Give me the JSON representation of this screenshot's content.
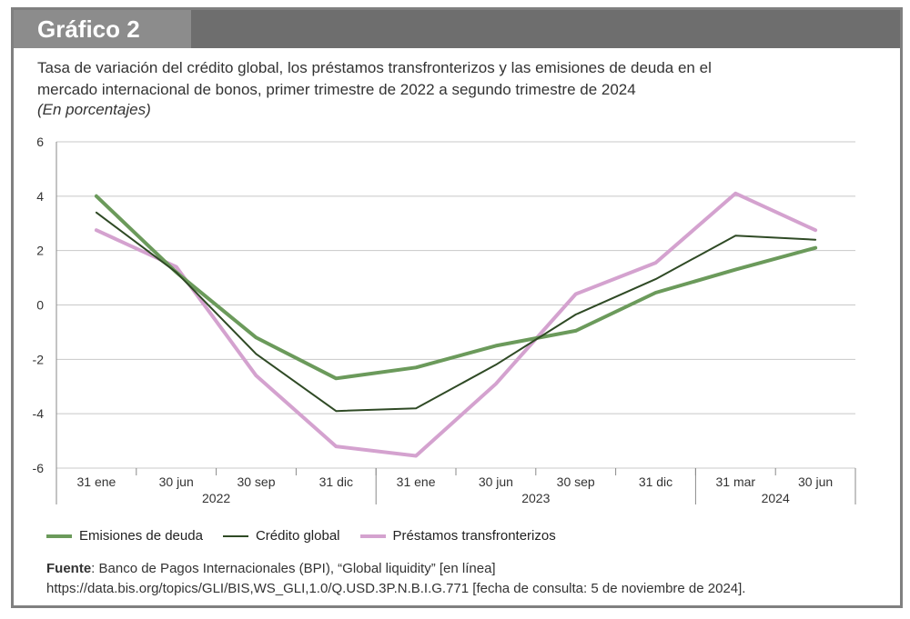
{
  "header": {
    "title": "Gráfico 2"
  },
  "subtitle": "Tasa de variación del crédito global, los préstamos transfronterizos y las emisiones de deuda en el mercado internacional de bonos, primer trimestre de 2022 a segundo trimestre de 2024",
  "units": "(En porcentajes)",
  "chart_data": {
    "type": "line",
    "categories": [
      "31 ene",
      "30 jun",
      "30 sep",
      "31 dic",
      "31 ene",
      "30 jun",
      "30 sep",
      "31 dic",
      "31 mar",
      "30 jun"
    ],
    "year_groups": [
      {
        "label": "2022",
        "start": 0,
        "end": 3
      },
      {
        "label": "2023",
        "start": 4,
        "end": 7
      },
      {
        "label": "2024",
        "start": 8,
        "end": 9
      }
    ],
    "ylim": [
      -6,
      6
    ],
    "yticks": [
      "6",
      "4",
      "2",
      "0",
      "-2",
      "-4",
      "-6"
    ],
    "series": [
      {
        "name": "Emisiones de deuda",
        "color": "#6b9a5b",
        "values": [
          4.0,
          1.2,
          -1.2,
          -2.7,
          -2.3,
          -1.5,
          -0.95,
          0.45,
          1.3,
          2.1
        ]
      },
      {
        "name": "Crédito global",
        "color": "#2f4a25",
        "values": [
          3.4,
          1.2,
          -1.8,
          -3.9,
          -3.8,
          -2.2,
          -0.35,
          0.95,
          2.55,
          2.4
        ]
      },
      {
        "name": "Préstamos transfronterizos",
        "color": "#d4a2cf",
        "values": [
          2.75,
          1.4,
          -2.6,
          -5.2,
          -5.55,
          -2.9,
          0.4,
          1.55,
          4.1,
          2.75
        ]
      }
    ]
  },
  "legend": [
    {
      "label": "Emisiones de deuda",
      "color": "#6b9a5b"
    },
    {
      "label": "Crédito global",
      "color": "#2f4a25"
    },
    {
      "label": "Préstamos transfronterizos",
      "color": "#d4a2cf"
    }
  ],
  "source": {
    "label": "Fuente",
    "text": ": Banco de Pagos Internacionales (BPI), “Global liquidity” [en línea] https://data.bis.org/topics/GLI/BIS,WS_GLI,1.0/Q.USD.3P.N.B.I.G.771 [fecha de consulta: 5 de noviembre de 2024]."
  }
}
